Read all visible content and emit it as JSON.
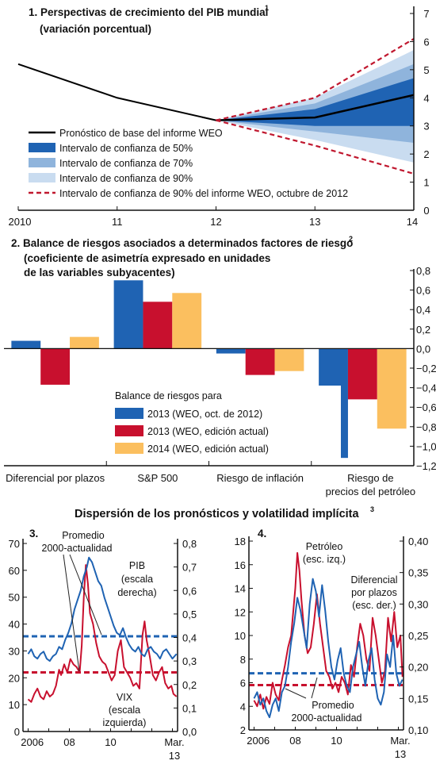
{
  "section_title": "Dispersión de los pronósticos y volatilidad implícita",
  "section_title_note": "3",
  "chart_data": [
    {
      "id": "panel1",
      "type": "line",
      "title": "1. Perspectivas de crecimiento del PIB mundial",
      "title_note": "1",
      "subtitle": "(variación porcentual)",
      "x": [
        "2010",
        "11",
        "12",
        "13",
        "14"
      ],
      "ylim": [
        0,
        7
      ],
      "yticks": [
        0,
        1,
        2,
        3,
        4,
        5,
        6,
        7
      ],
      "history": {
        "x": [
          2010,
          2011,
          2012
        ],
        "y": [
          5.2,
          4.0,
          3.2
        ]
      },
      "baseline": {
        "x": [
          2012,
          2013,
          2014
        ],
        "y": [
          3.2,
          3.3,
          4.1
        ]
      },
      "band_90": {
        "x": [
          2012,
          2013,
          2014
        ],
        "lower": [
          3.2,
          2.5,
          1.7
        ],
        "upper": [
          3.2,
          4.0,
          5.7
        ]
      },
      "band_70": {
        "x": [
          2012,
          2013,
          2014
        ],
        "lower": [
          3.2,
          2.8,
          2.4
        ],
        "upper": [
          3.2,
          3.8,
          5.2
        ]
      },
      "band_50": {
        "x": [
          2012,
          2013,
          2014
        ],
        "lower": [
          3.2,
          3.0,
          3.0
        ],
        "upper": [
          3.2,
          3.6,
          4.7
        ]
      },
      "weo_oct2012_90": {
        "x": [
          2012,
          2013,
          2014
        ],
        "lower": [
          3.2,
          2.3,
          1.3
        ],
        "upper": [
          3.2,
          4.0,
          6.1
        ]
      },
      "legend": [
        {
          "label": "Pronóstico de base del informe WEO",
          "kind": "line",
          "color": "#000000"
        },
        {
          "label": "Intervalo de confianza de 50%",
          "kind": "box",
          "color": "#1f63b3"
        },
        {
          "label": "Intervalo de confianza de 70%",
          "kind": "box",
          "color": "#8fb4dc"
        },
        {
          "label": "Intervalo de confianza de 90%",
          "kind": "box",
          "color": "#c9dcf0"
        },
        {
          "label": "Intervalo de confianza de 90% del informe WEO, octubre de 2012",
          "kind": "dash",
          "color": "#c0182f"
        }
      ]
    },
    {
      "id": "panel2",
      "type": "bar",
      "title": "2. Balance de riesgos asociados a determinados factores de riesgo",
      "title_note": "2",
      "subtitle_lines": [
        "(coeficiente de asimetría expresado en unidades",
        "de las variables subyacentes)"
      ],
      "categories": [
        "Diferencial por plazos",
        "S&P 500",
        "Riesgo de inflación",
        "Riesgo de precios del petróleo"
      ],
      "category_labels": [
        [
          "Diferencial por plazos"
        ],
        [
          "S&P 500"
        ],
        [
          "Riesgo de inflación"
        ],
        [
          "Riesgo de",
          "precios del petróleo"
        ]
      ],
      "ylim": [
        -1.2,
        0.8
      ],
      "yticks": [
        "0,8",
        "0,6",
        "0,4",
        "0,2",
        "0,0",
        "−0,2",
        "−0,4",
        "−0,6",
        "−0,8",
        "−1,0",
        "−1,2"
      ],
      "legend_title": "Balance de riesgos para",
      "series": [
        {
          "name": "2013 (WEO, oct. de 2012)",
          "color": "#1f63b3",
          "values": [
            0.08,
            0.7,
            -0.05,
            -1.12
          ]
        },
        {
          "name": "2013 (WEO, edición actual)",
          "color": "#c8102e",
          "values": [
            -0.37,
            0.48,
            -0.27,
            -0.52
          ]
        },
        {
          "name": "2014 (WEO, edición actual)",
          "color": "#fbbf5f",
          "values": [
            0.12,
            0.57,
            -0.23,
            -0.82
          ]
        }
      ]
    },
    {
      "id": "panel3",
      "type": "line",
      "title": "3.",
      "x_ticks": [
        "2006",
        "08",
        "10",
        "Mar.",
        "13"
      ],
      "left_axis": {
        "ylim": [
          0,
          70
        ],
        "ticks": [
          "70",
          "60",
          "50",
          "40",
          "30",
          "20",
          "10",
          "0"
        ]
      },
      "right_axis": {
        "ylim": [
          0,
          0.8
        ],
        "ticks": [
          "0,8",
          "0,7",
          "0,6",
          "0,5",
          "0,4",
          "0,3",
          "0,2",
          "0,1",
          "0,0"
        ]
      },
      "series": [
        {
          "name": "VIX",
          "axis": "left",
          "color": "#c8102e",
          "x": [
            2006.0,
            2006.15,
            2006.3,
            2006.45,
            2006.6,
            2006.75,
            2006.9,
            2007.05,
            2007.2,
            2007.35,
            2007.5,
            2007.6,
            2007.75,
            2007.9,
            2008.05,
            2008.2,
            2008.35,
            2008.5,
            2008.6,
            2008.7,
            2008.8,
            2008.9,
            2009.0,
            2009.15,
            2009.3,
            2009.45,
            2009.6,
            2009.75,
            2009.9,
            2010.05,
            2010.2,
            2010.35,
            2010.5,
            2010.65,
            2010.8,
            2010.95,
            2011.1,
            2011.25,
            2011.4,
            2011.55,
            2011.65,
            2011.75,
            2011.9,
            2012.05,
            2012.2,
            2012.35,
            2012.5,
            2012.65,
            2012.8,
            2012.95,
            2013.05,
            2013.2
          ],
          "y": [
            12,
            11,
            14,
            16,
            13,
            12,
            15,
            13,
            14,
            17,
            23,
            21,
            25,
            22,
            27,
            25,
            24,
            22,
            32,
            50,
            62,
            55,
            44,
            40,
            33,
            28,
            26,
            25,
            22,
            19,
            21,
            30,
            34,
            24,
            22,
            20,
            17,
            18,
            16,
            36,
            41,
            34,
            28,
            21,
            19,
            22,
            24,
            18,
            16,
            17,
            14,
            13
          ]
        },
        {
          "name": "PIB",
          "axis": "right",
          "color": "#1f63b3",
          "x": [
            2006.0,
            2006.15,
            2006.3,
            2006.45,
            2006.6,
            2006.75,
            2006.9,
            2007.05,
            2007.2,
            2007.35,
            2007.5,
            2007.65,
            2007.8,
            2007.95,
            2008.1,
            2008.25,
            2008.4,
            2008.55,
            2008.7,
            2008.85,
            2008.95,
            2009.1,
            2009.25,
            2009.4,
            2009.55,
            2009.7,
            2009.85,
            2010.0,
            2010.15,
            2010.3,
            2010.45,
            2010.6,
            2010.75,
            2010.9,
            2011.05,
            2011.2,
            2011.35,
            2011.5,
            2011.65,
            2011.8,
            2011.95,
            2012.1,
            2012.25,
            2012.4,
            2012.55,
            2012.7,
            2012.85,
            2013.0,
            2013.2
          ],
          "y": [
            0.33,
            0.35,
            0.32,
            0.31,
            0.33,
            0.34,
            0.31,
            0.3,
            0.32,
            0.33,
            0.36,
            0.35,
            0.39,
            0.42,
            0.46,
            0.52,
            0.56,
            0.6,
            0.66,
            0.7,
            0.74,
            0.72,
            0.68,
            0.64,
            0.62,
            0.57,
            0.53,
            0.49,
            0.45,
            0.42,
            0.41,
            0.44,
            0.4,
            0.37,
            0.35,
            0.34,
            0.36,
            0.33,
            0.32,
            0.35,
            0.36,
            0.34,
            0.33,
            0.31,
            0.34,
            0.35,
            0.33,
            0.31,
            0.33
          ]
        }
      ],
      "averages": [
        {
          "name": "Promedio PIB",
          "axis": "right",
          "value": 0.405,
          "color": "#1f63b3"
        },
        {
          "name": "Promedio VIX",
          "axis": "left",
          "value": 22,
          "color": "#c8102e"
        }
      ],
      "annotations": [
        {
          "lines": [
            "Promedio",
            "2000-actualidad"
          ]
        },
        {
          "lines": [
            "PIB",
            "(escala",
            "derecha)"
          ]
        },
        {
          "lines": [
            "VIX",
            "(escala",
            "izquierda)"
          ]
        }
      ]
    },
    {
      "id": "panel4",
      "type": "line",
      "title": "4.",
      "x_ticks": [
        "2006",
        "08",
        "10",
        "Mar.",
        "13"
      ],
      "left_axis": {
        "ylim": [
          2,
          18
        ],
        "ticks": [
          "18",
          "16",
          "14",
          "12",
          "10",
          "8",
          "6",
          "4",
          "2"
        ]
      },
      "right_axis": {
        "ylim": [
          0.1,
          0.4
        ],
        "ticks": [
          "0,40",
          "0,35",
          "0,30",
          "0,25",
          "0,20",
          "0,15",
          "0,10"
        ]
      },
      "series": [
        {
          "name": "Petróleo",
          "axis": "left",
          "color": "#c8102e",
          "x": [
            2006.0,
            2006.15,
            2006.3,
            2006.45,
            2006.6,
            2006.75,
            2006.9,
            2007.05,
            2007.2,
            2007.35,
            2007.5,
            2007.65,
            2007.8,
            2007.9,
            2008.0,
            2008.1,
            2008.2,
            2008.3,
            2008.45,
            2008.6,
            2008.75,
            2008.9,
            2009.05,
            2009.2,
            2009.35,
            2009.5,
            2009.65,
            2009.8,
            2009.95,
            2010.1,
            2010.25,
            2010.4,
            2010.55,
            2010.7,
            2010.85,
            2011.0,
            2011.15,
            2011.3,
            2011.45,
            2011.6,
            2011.75,
            2011.9,
            2012.05,
            2012.2,
            2012.35,
            2012.5,
            2012.65,
            2012.8,
            2012.95,
            2013.1,
            2013.2
          ],
          "y": [
            4.5,
            4.0,
            5.0,
            3.8,
            4.8,
            4.2,
            6.0,
            5.0,
            4.5,
            6.2,
            7.5,
            9.0,
            10.0,
            12.0,
            14.0,
            17.0,
            15.5,
            13.0,
            10.0,
            8.5,
            9.0,
            11.0,
            13.5,
            11.0,
            9.0,
            7.0,
            6.5,
            5.5,
            6.0,
            5.2,
            6.5,
            6.0,
            5.0,
            7.5,
            6.5,
            9.0,
            11.0,
            10.0,
            8.0,
            7.0,
            11.5,
            10.0,
            8.0,
            6.0,
            7.0,
            11.5,
            9.5,
            12.0,
            9.0,
            10.0,
            6.5
          ]
        },
        {
          "name": "Diferencial por plazos",
          "axis": "right",
          "color": "#1f63b3",
          "x": [
            2006.0,
            2006.15,
            2006.3,
            2006.45,
            2006.6,
            2006.75,
            2006.9,
            2007.05,
            2007.2,
            2007.35,
            2007.5,
            2007.65,
            2007.8,
            2007.95,
            2008.1,
            2008.25,
            2008.4,
            2008.55,
            2008.7,
            2008.85,
            2009.0,
            2009.15,
            2009.3,
            2009.45,
            2009.6,
            2009.75,
            2009.9,
            2010.05,
            2010.2,
            2010.35,
            2010.5,
            2010.65,
            2010.8,
            2010.95,
            2011.1,
            2011.25,
            2011.4,
            2011.55,
            2011.7,
            2011.85,
            2012.0,
            2012.15,
            2012.3,
            2012.45,
            2012.6,
            2012.75,
            2012.9,
            2013.05,
            2013.2
          ],
          "y": [
            0.15,
            0.16,
            0.14,
            0.15,
            0.13,
            0.12,
            0.14,
            0.15,
            0.13,
            0.16,
            0.17,
            0.2,
            0.24,
            0.27,
            0.31,
            0.29,
            0.26,
            0.23,
            0.3,
            0.34,
            0.32,
            0.28,
            0.33,
            0.29,
            0.24,
            0.2,
            0.18,
            0.21,
            0.23,
            0.19,
            0.17,
            0.16,
            0.2,
            0.22,
            0.24,
            0.2,
            0.17,
            0.21,
            0.23,
            0.18,
            0.15,
            0.14,
            0.16,
            0.22,
            0.2,
            0.25,
            0.19,
            0.17,
            0.18
          ]
        }
      ],
      "averages": [
        {
          "name": "Promedio Diferencial",
          "axis": "right",
          "value": 0.19,
          "color": "#1f63b3"
        },
        {
          "name": "Promedio Petróleo",
          "axis": "left",
          "value": 5.8,
          "color": "#c8102e"
        }
      ],
      "annotations": [
        {
          "lines": [
            "Petróleo",
            "(esc. izq.)"
          ]
        },
        {
          "lines": [
            "Diferencial",
            "por plazos",
            "(esc. der.)"
          ]
        },
        {
          "lines": [
            "Promedio",
            "2000-actualidad"
          ]
        }
      ]
    }
  ]
}
